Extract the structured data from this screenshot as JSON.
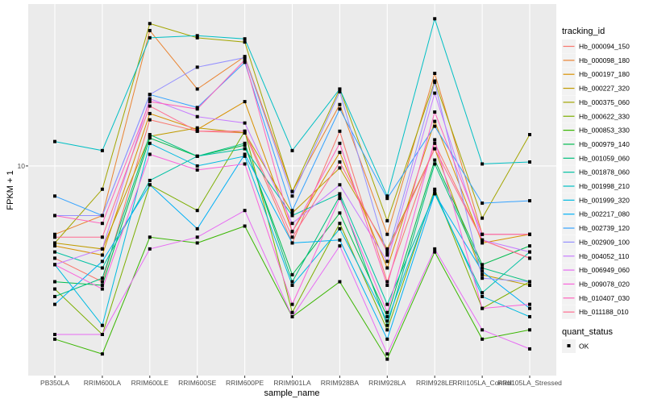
{
  "chart_data": {
    "type": "line",
    "title": "",
    "xlabel": "sample_name",
    "ylabel": "FPKM + 1",
    "y_scale": "log10",
    "ylim": [
      3.5,
      22.5
    ],
    "y_ticks": [
      {
        "value": 10,
        "label": "10"
      }
    ],
    "grid": true,
    "legend_position": "right",
    "categories": [
      "PB350LA",
      "RRIM600LA",
      "RRIM600LE",
      "RRIM600SE",
      "RRIM600PE",
      "RRIM901LA",
      "RRIM928BA",
      "RRIM928LA",
      "RRIM928LE",
      "RRII105LA_Control",
      "RRII105LA_Stressed"
    ],
    "color_legend_title": "tracking_id",
    "shape_legend_title": "quant_status",
    "shape_legend_items": [
      {
        "label": "OK",
        "shape": "square"
      }
    ],
    "point_color": "#000000",
    "series": [
      {
        "name": "Hb_000094_150",
        "color": "#F8766D",
        "values": [
          6.3,
          5.6,
          12.6,
          11.9,
          11.8,
          6.8,
          11.9,
          5.6,
          11.2,
          6.9,
          6.3
        ]
      },
      {
        "name": "Hb_000098_180",
        "color": "#EA8331",
        "values": [
          7.1,
          7.8,
          19.7,
          14.7,
          17.3,
          8.8,
          13.6,
          7.1,
          15.9,
          7.1,
          7.1
        ]
      },
      {
        "name": "Hb_000197_180",
        "color": "#D89000",
        "values": [
          6.7,
          6.4,
          13.0,
          12.0,
          13.8,
          7.2,
          10.7,
          6.0,
          12.5,
          6.8,
          7.1
        ]
      },
      {
        "name": "Hb_000227_320",
        "color": "#C09B00",
        "values": [
          6.8,
          6.6,
          11.6,
          12.1,
          11.8,
          7.9,
          9.9,
          6.6,
          10.9,
          5.8,
          5.5
        ]
      },
      {
        "name": "Hb_000375_060",
        "color": "#A3A500",
        "values": [
          6.8,
          8.9,
          20.4,
          19.0,
          18.6,
          8.8,
          14.7,
          7.6,
          15.3,
          7.7,
          11.7
        ]
      },
      {
        "name": "Hb_000622_330",
        "color": "#7CAE00",
        "values": [
          5.4,
          4.3,
          9.1,
          8.0,
          11.9,
          4.8,
          7.5,
          4.4,
          8.9,
          4.9,
          5.6
        ]
      },
      {
        "name": "Hb_000853_330",
        "color": "#39B600",
        "values": [
          4.2,
          3.9,
          7.0,
          6.8,
          7.4,
          4.7,
          5.6,
          3.8,
          6.5,
          4.2,
          4.4
        ]
      },
      {
        "name": "Hb_000979_140",
        "color": "#00BB4E",
        "values": [
          5.6,
          5.5,
          11.5,
          10.5,
          11.1,
          5.8,
          7.9,
          4.7,
          10.3,
          6.1,
          6.7
        ]
      },
      {
        "name": "Hb_001059_060",
        "color": "#00BF7D",
        "values": [
          5.2,
          5.7,
          11.7,
          10.5,
          11.2,
          5.6,
          8.6,
          4.5,
          10.1,
          6.0,
          5.6
        ]
      },
      {
        "name": "Hb_001878_060",
        "color": "#00C1A3",
        "values": [
          6.5,
          6.0,
          9.3,
          10.5,
          10.9,
          7.8,
          8.7,
          5.0,
          8.7,
          5.3,
          6.5
        ]
      },
      {
        "name": "Hb_001998_210",
        "color": "#00BFC4",
        "values": [
          11.3,
          10.8,
          19.0,
          19.2,
          18.9,
          10.8,
          14.7,
          8.6,
          20.9,
          10.1,
          10.2
        ]
      },
      {
        "name": "Hb_001999_320",
        "color": "#00BAE0",
        "values": [
          6.1,
          4.5,
          11.2,
          10.0,
          10.5,
          5.5,
          7.3,
          4.6,
          8.8,
          5.2,
          4.7
        ]
      },
      {
        "name": "Hb_002217_080",
        "color": "#00B0F6",
        "values": [
          5.0,
          6.2,
          9.1,
          7.3,
          10.6,
          6.8,
          6.9,
          4.2,
          8.7,
          5.9,
          4.9
        ]
      },
      {
        "name": "Hb_002739_120",
        "color": "#35A2FF",
        "values": [
          8.6,
          7.8,
          14.3,
          13.4,
          16.8,
          8.0,
          13.3,
          8.5,
          12.2,
          8.3,
          8.4
        ]
      },
      {
        "name": "Hb_002909_100",
        "color": "#9590FF",
        "values": [
          7.8,
          7.8,
          14.3,
          16.4,
          17.2,
          8.6,
          14.5,
          6.4,
          15.2,
          5.7,
          5.6
        ]
      },
      {
        "name": "Hb_004052_110",
        "color": "#C77CFF",
        "values": [
          6.1,
          6.6,
          14.0,
          12.8,
          12.4,
          7.5,
          9.1,
          6.2,
          14.4,
          6.9,
          6.5
        ]
      },
      {
        "name": "Hb_006949_060",
        "color": "#E76BF3",
        "values": [
          4.3,
          4.3,
          6.6,
          7.0,
          8.0,
          4.7,
          6.7,
          3.9,
          6.6,
          4.4,
          4.0
        ]
      },
      {
        "name": "Hb_009078_020",
        "color": "#FA62DB",
        "values": [
          6.1,
          5.4,
          10.6,
          9.8,
          10.1,
          5.0,
          8.5,
          4.8,
          11.4,
          4.9,
          5.0
        ]
      },
      {
        "name": "Hb_010407_030",
        "color": "#FF62BC",
        "values": [
          7.8,
          7.5,
          13.8,
          13.3,
          17.0,
          7.2,
          11.2,
          5.5,
          13.1,
          7.1,
          7.1
        ]
      },
      {
        "name": "Hb_011188_010",
        "color": "#FF6C91",
        "values": [
          7.0,
          7.0,
          13.5,
          11.9,
          11.9,
          7.0,
          10.2,
          6.5,
          10.9,
          6.9,
          6.3
        ]
      }
    ]
  }
}
